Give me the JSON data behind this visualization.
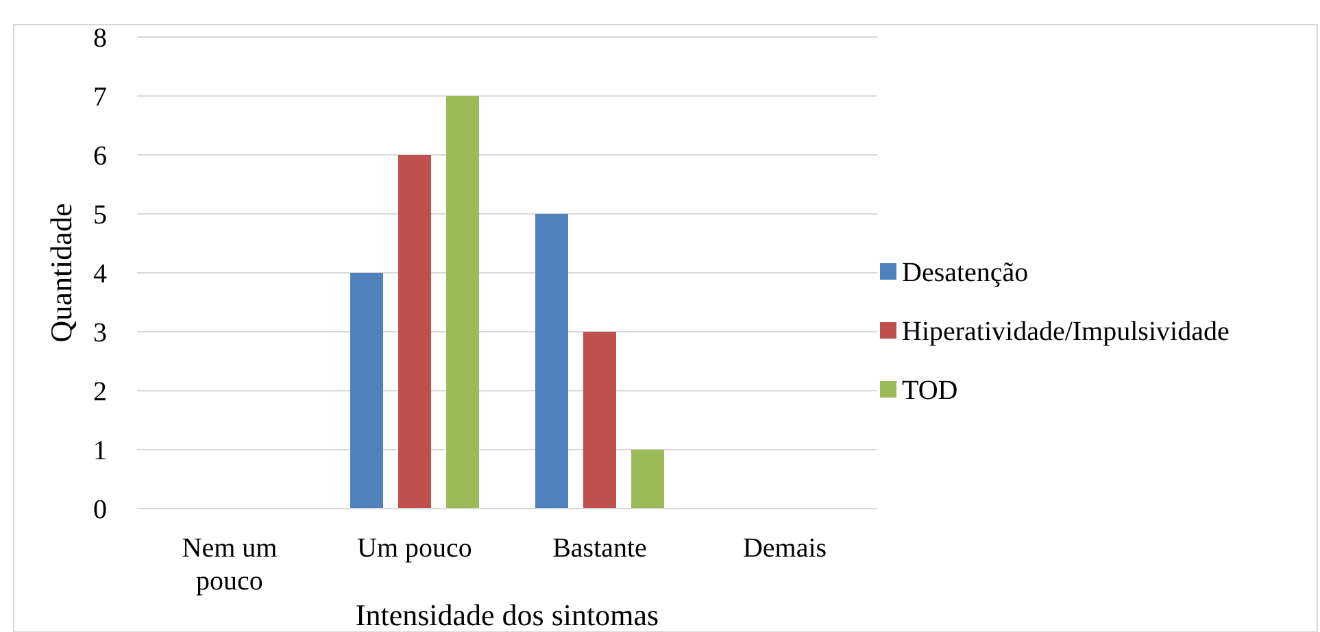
{
  "chart_data": {
    "type": "bar",
    "xlabel": "Intensidade dos sintomas",
    "ylabel": "Quantidade",
    "categories": [
      "Nem um pouco",
      "Um pouco",
      "Bastante",
      "Demais"
    ],
    "series": [
      {
        "name": "Desatenção",
        "color": "#4f81bd",
        "values": [
          0,
          4,
          5,
          0
        ]
      },
      {
        "name": "Hiperatividade/Impulsividade",
        "color": "#c0504d",
        "values": [
          0,
          6,
          3,
          0
        ]
      },
      {
        "name": "TOD",
        "color": "#9bbb59",
        "values": [
          0,
          7,
          1,
          0
        ]
      }
    ],
    "ylim": [
      0,
      8
    ],
    "yticks": [
      0,
      1,
      2,
      3,
      4,
      5,
      6,
      7,
      8
    ],
    "grid": "y",
    "legend": "right"
  }
}
